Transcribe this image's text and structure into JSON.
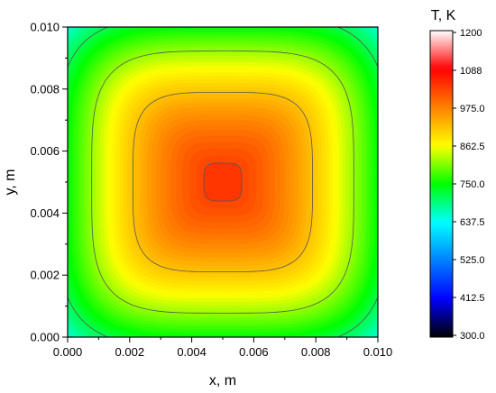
{
  "chart_data": {
    "type": "heatmap",
    "subtype": "filled-contour",
    "xlabel": "x, m",
    "ylabel": "y, m",
    "xlim": [
      0.0,
      0.01
    ],
    "ylim": [
      0.0,
      0.01
    ],
    "x_ticks": [
      "0.000",
      "0.002",
      "0.004",
      "0.006",
      "0.008",
      "0.010"
    ],
    "y_ticks": [
      "0.000",
      "0.002",
      "0.004",
      "0.006",
      "0.008",
      "0.010"
    ],
    "colorbar": {
      "title": "T, K",
      "min": 300.0,
      "max": 1200,
      "tick_labels": [
        "300.0",
        "412.5",
        "525.0",
        "637.5",
        "750.0",
        "862.5",
        "975.0",
        "1088",
        "1200"
      ],
      "colors": [
        "#000000",
        "#0000ff",
        "#0080ff",
        "#00ffff",
        "#00ff00",
        "#ffff00",
        "#ff8000",
        "#ff0000",
        "#ffffff"
      ]
    },
    "field": {
      "description_values_K": {
        "center_max": 1040,
        "corner_min": 660
      },
      "contour_levels_K": [
        720,
        820,
        920,
        1030
      ]
    },
    "grid": false
  }
}
